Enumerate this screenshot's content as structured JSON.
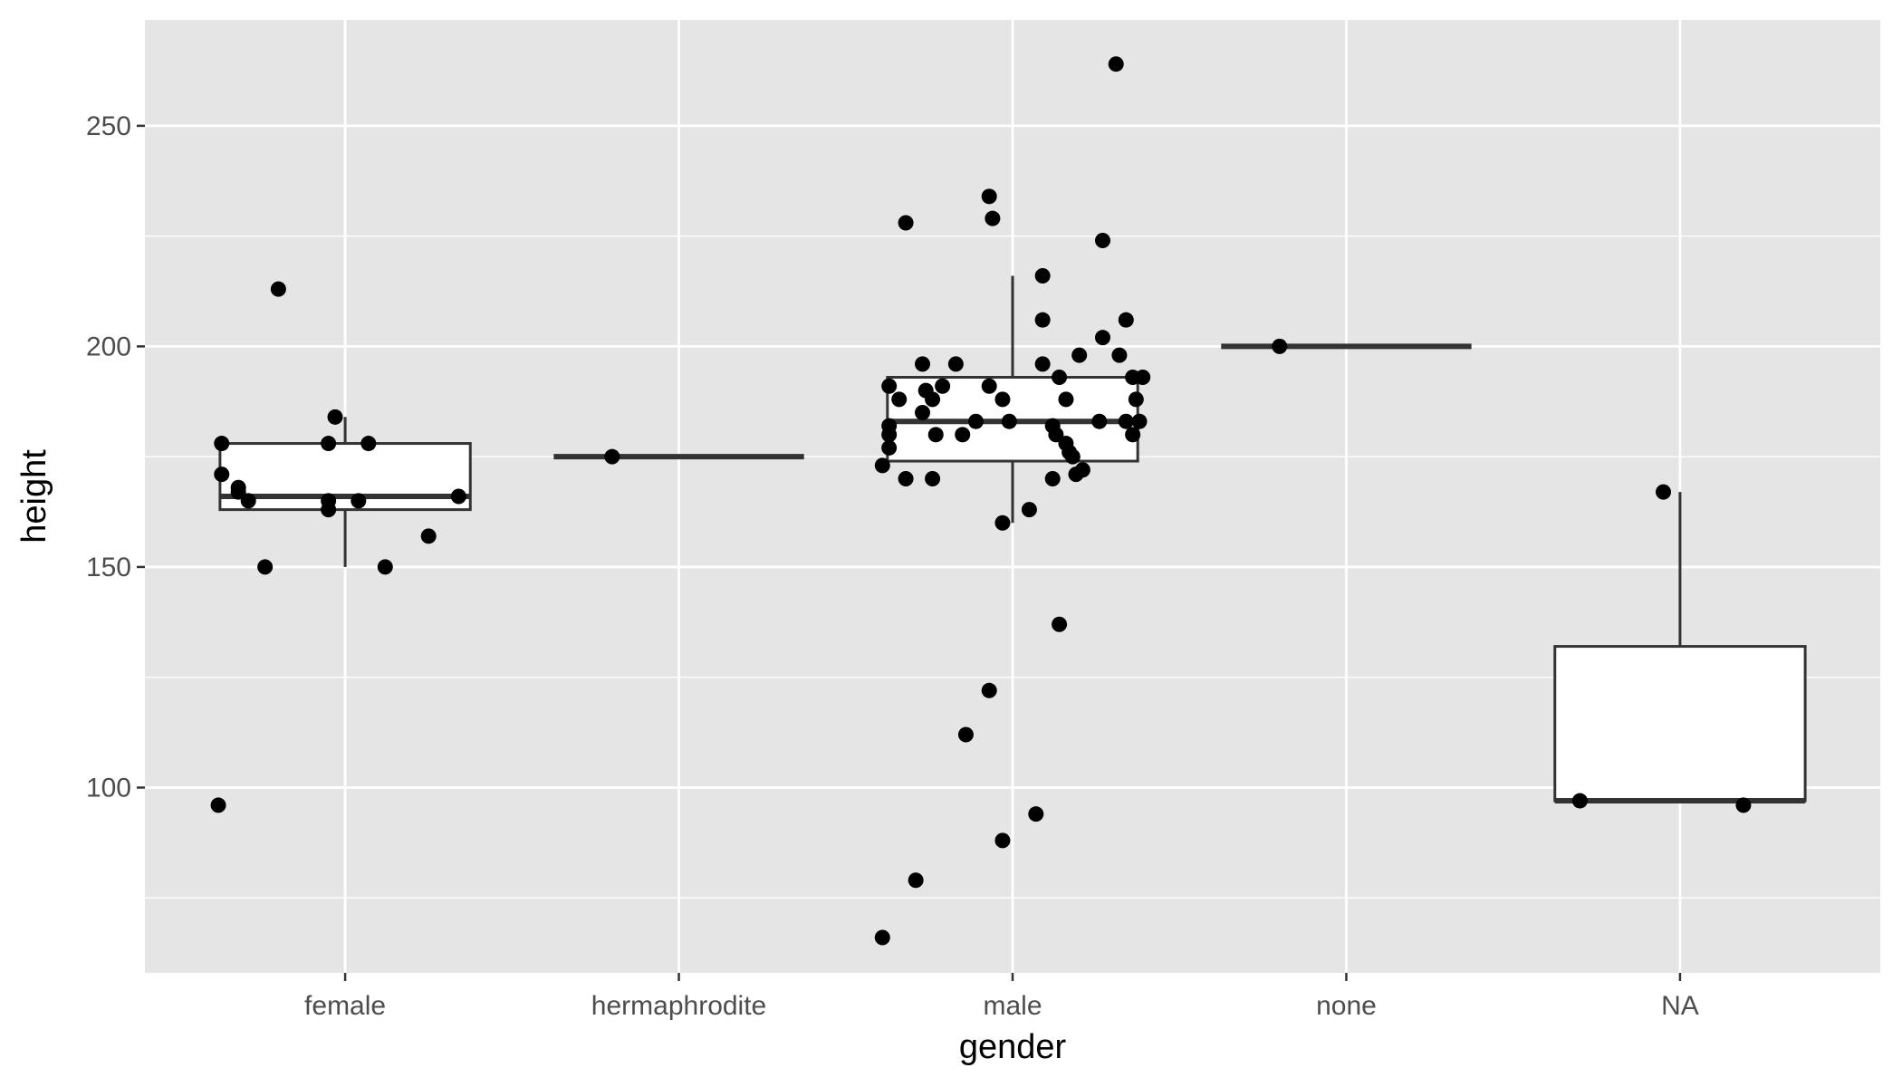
{
  "chart_data": {
    "type": "box-jitter",
    "title": "",
    "xlabel": "gender",
    "ylabel": "height",
    "ylim": [
      58,
      274
    ],
    "y_ticks": [
      100,
      150,
      200,
      250
    ],
    "grid": true,
    "categories": [
      "female",
      "hermaphrodite",
      "male",
      "none",
      "NA"
    ],
    "boxes": [
      {
        "category": "female",
        "q1": 163,
        "median": 166,
        "q3": 178,
        "whisker_low": 150,
        "whisker_high": 184
      },
      {
        "category": "hermaphrodite",
        "q1": 175,
        "median": 175,
        "q3": 175,
        "whisker_low": 175,
        "whisker_high": 175
      },
      {
        "category": "male",
        "q1": 174,
        "median": 183,
        "q3": 193,
        "whisker_low": 160,
        "whisker_high": 216
      },
      {
        "category": "none",
        "q1": 200,
        "median": 200,
        "q3": 200,
        "whisker_low": 200,
        "whisker_high": 200
      },
      {
        "category": "NA",
        "q1": 97,
        "median": 97,
        "q3": 132,
        "whisker_low": 97,
        "whisker_high": 167
      }
    ],
    "points": [
      {
        "category": "female",
        "values": [
          {
            "x": -0.38,
            "y": 96
          },
          {
            "x": -0.37,
            "y": 178
          },
          {
            "x": -0.37,
            "y": 171
          },
          {
            "x": -0.32,
            "y": 168
          },
          {
            "x": -0.32,
            "y": 167
          },
          {
            "x": -0.29,
            "y": 165
          },
          {
            "x": -0.24,
            "y": 150
          },
          {
            "x": -0.2,
            "y": 213
          },
          {
            "x": -0.05,
            "y": 165
          },
          {
            "x": -0.05,
            "y": 163
          },
          {
            "x": -0.03,
            "y": 184
          },
          {
            "x": -0.05,
            "y": 178
          },
          {
            "x": 0.04,
            "y": 165
          },
          {
            "x": 0.07,
            "y": 178
          },
          {
            "x": 0.12,
            "y": 150
          },
          {
            "x": 0.25,
            "y": 157
          },
          {
            "x": 0.34,
            "y": 166
          }
        ]
      },
      {
        "category": "hermaphrodite",
        "values": [
          {
            "x": -0.2,
            "y": 175
          }
        ]
      },
      {
        "category": "male",
        "values": [
          {
            "x": -0.39,
            "y": 66
          },
          {
            "x": -0.29,
            "y": 79
          },
          {
            "x": -0.03,
            "y": 88
          },
          {
            "x": 0.07,
            "y": 94
          },
          {
            "x": -0.14,
            "y": 112
          },
          {
            "x": -0.07,
            "y": 122
          },
          {
            "x": 0.14,
            "y": 137
          },
          {
            "x": -0.03,
            "y": 160
          },
          {
            "x": 0.05,
            "y": 163
          },
          {
            "x": -0.32,
            "y": 170
          },
          {
            "x": -0.24,
            "y": 170
          },
          {
            "x": 0.12,
            "y": 170
          },
          {
            "x": 0.21,
            "y": 172
          },
          {
            "x": 0.19,
            "y": 171
          },
          {
            "x": -0.39,
            "y": 173
          },
          {
            "x": 0.18,
            "y": 175
          },
          {
            "x": 0.17,
            "y": 176
          },
          {
            "x": -0.37,
            "y": 177
          },
          {
            "x": 0.16,
            "y": 178
          },
          {
            "x": -0.37,
            "y": 180
          },
          {
            "x": -0.23,
            "y": 180
          },
          {
            "x": -0.15,
            "y": 180
          },
          {
            "x": 0.13,
            "y": 180
          },
          {
            "x": 0.36,
            "y": 180
          },
          {
            "x": 0.12,
            "y": 182
          },
          {
            "x": -0.37,
            "y": 182
          },
          {
            "x": -0.27,
            "y": 185
          },
          {
            "x": -0.11,
            "y": 183
          },
          {
            "x": -0.01,
            "y": 183
          },
          {
            "x": 0.26,
            "y": 183
          },
          {
            "x": 0.34,
            "y": 183
          },
          {
            "x": 0.38,
            "y": 183
          },
          {
            "x": -0.34,
            "y": 188
          },
          {
            "x": -0.24,
            "y": 188
          },
          {
            "x": -0.03,
            "y": 188
          },
          {
            "x": 0.16,
            "y": 188
          },
          {
            "x": 0.37,
            "y": 188
          },
          {
            "x": -0.37,
            "y": 191
          },
          {
            "x": -0.26,
            "y": 190
          },
          {
            "x": -0.21,
            "y": 191
          },
          {
            "x": -0.07,
            "y": 191
          },
          {
            "x": 0.14,
            "y": 193
          },
          {
            "x": 0.36,
            "y": 193
          },
          {
            "x": 0.39,
            "y": 193
          },
          {
            "x": -0.27,
            "y": 196
          },
          {
            "x": -0.17,
            "y": 196
          },
          {
            "x": 0.09,
            "y": 196
          },
          {
            "x": 0.2,
            "y": 198
          },
          {
            "x": 0.32,
            "y": 198
          },
          {
            "x": 0.27,
            "y": 202
          },
          {
            "x": 0.09,
            "y": 206
          },
          {
            "x": 0.34,
            "y": 206
          },
          {
            "x": 0.09,
            "y": 216
          },
          {
            "x": 0.27,
            "y": 224
          },
          {
            "x": -0.32,
            "y": 228
          },
          {
            "x": -0.06,
            "y": 229
          },
          {
            "x": -0.07,
            "y": 234
          },
          {
            "x": 0.31,
            "y": 264
          }
        ]
      },
      {
        "category": "none",
        "values": [
          {
            "x": -0.2,
            "y": 200
          }
        ]
      },
      {
        "category": "NA",
        "values": [
          {
            "x": -0.3,
            "y": 97
          },
          {
            "x": -0.05,
            "y": 167
          },
          {
            "x": 0.19,
            "y": 96
          }
        ]
      }
    ]
  }
}
